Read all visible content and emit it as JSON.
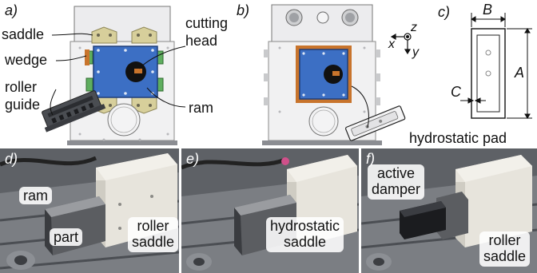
{
  "panels": {
    "a": {
      "letter": "a)",
      "labels": {
        "saddle": "saddle",
        "wedge": "wedge",
        "roller_guide_1": "roller",
        "roller_guide_2": "guide",
        "cutting_head_1": "cutting",
        "cutting_head_2": "head",
        "ram": "ram"
      }
    },
    "b": {
      "letter": "b)",
      "axes": {
        "x": "x",
        "y": "y",
        "z": "z"
      },
      "labels": {
        "hydrostatic_pad": "hydrostatic pad"
      }
    },
    "c": {
      "letter": "c)",
      "dims": {
        "a": "A",
        "b": "B",
        "c": "C"
      }
    },
    "d": {
      "letter": "d)",
      "labels": {
        "ram": "ram",
        "part": "part",
        "roller_saddle_1": "roller",
        "roller_saddle_2": "saddle"
      }
    },
    "e": {
      "letter": "e)",
      "labels": {
        "hydrostatic_saddle_1": "hydrostatic",
        "hydrostatic_saddle_2": "saddle"
      }
    },
    "f": {
      "letter": "f)",
      "labels": {
        "active_damper_1": "active",
        "active_damper_2": "damper",
        "roller_saddle_1": "roller",
        "roller_saddle_2": "saddle"
      }
    }
  },
  "colors": {
    "ram_blue": "#3c6fc4",
    "wedge_orange": "#c8742c",
    "saddle_gray": "#e9e9ea",
    "guide_gray": "#4a4d52"
  }
}
